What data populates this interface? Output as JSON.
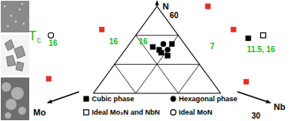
{
  "chart_data": {
    "type": "ternary",
    "axes": {
      "top": "N",
      "left": "Mo",
      "right": "Nb"
    },
    "n_range": [
      30,
      60
    ],
    "nb_range": [
      20,
      50
    ],
    "mo_range": [
      20,
      50
    ],
    "nticks": [
      30,
      60
    ],
    "grid": true,
    "grid_n": [
      40,
      50
    ],
    "grid_nb": [
      30,
      40
    ],
    "grid_mo": [
      30,
      40
    ],
    "series": [
      {
        "name": "Cubic phase",
        "color": "#000000",
        "marker": "square",
        "n": [
          49,
          46,
          45,
          44,
          43,
          47
        ],
        "nb": [
          47,
          26,
          28,
          29,
          31,
          30
        ]
      },
      {
        "name": "Hexagonal phase",
        "color": "#000000",
        "marker": "circle",
        "n": [
          47,
          45
        ],
        "nb": [
          28,
          30
        ]
      },
      {
        "name": "Ideal Mo₂N and NbN",
        "color": "#000000",
        "marker": "open-square",
        "n": [
          50
        ],
        "nb": [
          50
        ]
      },
      {
        "name": "Ideal MoN",
        "color": "#000000",
        "marker": "open-circle",
        "n": [
          50
        ],
        "nb": [
          0
        ]
      },
      {
        "color": "#e0302a",
        "marker": "square",
        "n": [
          52,
          52,
          60,
          35,
          34
        ],
        "nb": [
          11,
          42,
          32,
          7,
          54
        ]
      }
    ],
    "tc_label": {
      "text": "T",
      "subscript": "c",
      "color": "#22bb22"
    },
    "annotations": [
      {
        "text": "16",
        "n": 47,
        "nb": 2,
        "color": "#22bb22"
      },
      {
        "text": "16",
        "n": 47.5,
        "nb": 16,
        "color": "#22bb22"
      },
      {
        "text": "16",
        "n": 47.5,
        "nb": 23,
        "color": "#22bb22"
      },
      {
        "text": "7",
        "n": 46,
        "nb": 40,
        "color": "#22bb22"
      },
      {
        "text": "11.5, 16",
        "n": 45,
        "nb": 52,
        "color": "#22bb22"
      }
    ]
  }
}
